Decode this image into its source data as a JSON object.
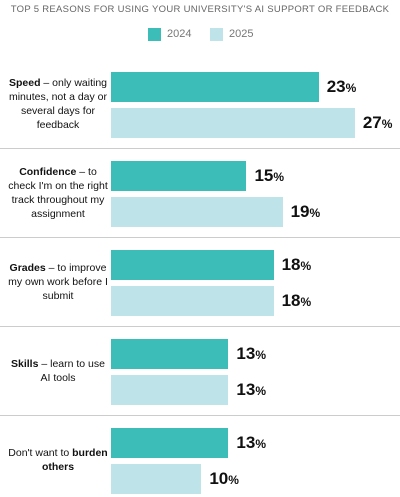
{
  "chart_data": {
    "type": "bar",
    "orientation": "horizontal",
    "title": "TOP 5 REASONS FOR USING YOUR UNIVERSITY'S AI SUPPORT OR FEEDBACK",
    "categories": [
      [
        {
          "text": "Speed",
          "bold": true
        },
        {
          "text": " – only waiting minutes, not a day or several days for feedback",
          "bold": false
        }
      ],
      [
        {
          "text": "Confidence",
          "bold": true
        },
        {
          "text": " – to check I'm on the right track throughout my assignment",
          "bold": false
        }
      ],
      [
        {
          "text": "Grades",
          "bold": true
        },
        {
          "text": " – to improve my own work before I submit",
          "bold": false
        }
      ],
      [
        {
          "text": "Skills",
          "bold": true
        },
        {
          "text": " – learn to use AI tools",
          "bold": false
        }
      ],
      [
        {
          "text": "Don't want to ",
          "bold": false
        },
        {
          "text": "burden others",
          "bold": true
        }
      ]
    ],
    "series": [
      {
        "name": "2024",
        "color": "#3dbdb7",
        "values": [
          23,
          15,
          18,
          13,
          13
        ],
        "value_labels": [
          "23%",
          "15%",
          "18%",
          "13%",
          "13%"
        ]
      },
      {
        "name": "2025",
        "color": "#bee4ea",
        "values": [
          27,
          19,
          18,
          13,
          10
        ],
        "value_labels": [
          "27%",
          "19%",
          "18%",
          "13%",
          "10%"
        ]
      }
    ],
    "xlim": [
      0,
      32
    ]
  }
}
